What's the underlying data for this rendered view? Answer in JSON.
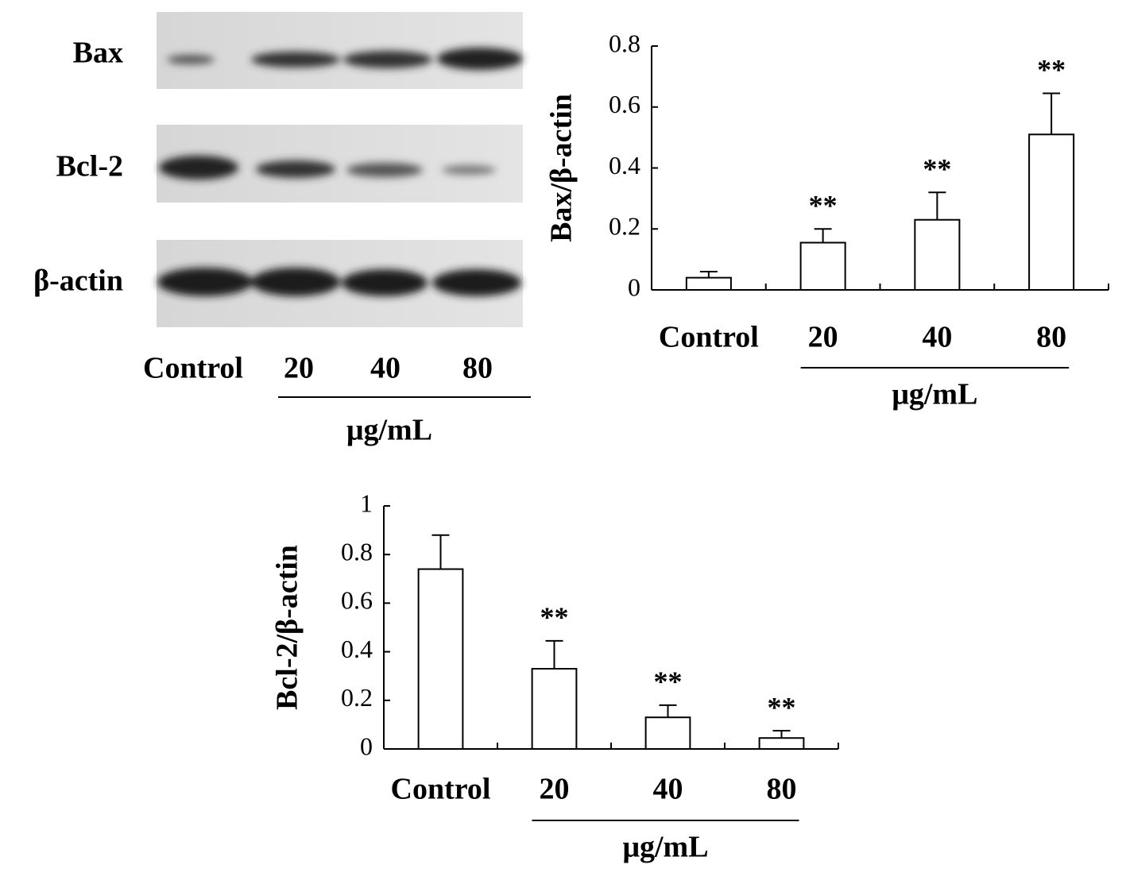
{
  "blot": {
    "rows": [
      "Bax",
      "Bcl-2",
      "β-actin"
    ],
    "lanes": [
      "Control",
      "20",
      "40",
      "80"
    ],
    "unit": "μg/mL"
  },
  "chart_data": [
    {
      "type": "bar",
      "y_label": "Bax/β-actin",
      "categories": [
        "Control",
        "20",
        "40",
        "80"
      ],
      "values": [
        0.04,
        0.155,
        0.23,
        0.51
      ],
      "errors": [
        0.02,
        0.045,
        0.09,
        0.135
      ],
      "significance": [
        null,
        "**",
        "**",
        "**"
      ],
      "group_label": "μg/mL",
      "color": "#ffffff",
      "ylim": [
        0,
        0.8
      ],
      "yticks": [
        0,
        0.2,
        0.4,
        0.6,
        0.8
      ]
    },
    {
      "type": "bar",
      "y_label": "Bcl-2/β-actin",
      "categories": [
        "Control",
        "20",
        "40",
        "80"
      ],
      "values": [
        0.74,
        0.33,
        0.13,
        0.045
      ],
      "errors": [
        0.14,
        0.115,
        0.05,
        0.03
      ],
      "significance": [
        null,
        "**",
        "**",
        "**"
      ],
      "group_label": "μg/mL",
      "color": "#ffffff",
      "ylim": [
        0,
        1
      ],
      "yticks": [
        0,
        0.2,
        0.4,
        0.6,
        0.8,
        1
      ]
    }
  ]
}
